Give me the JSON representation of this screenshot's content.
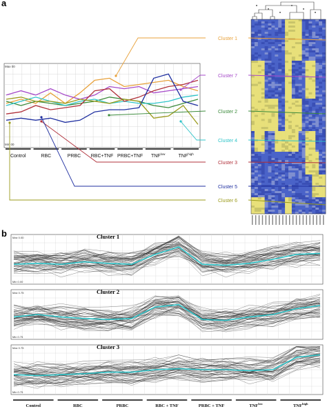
{
  "panel_a": {
    "letter": "a",
    "max_label": "Max 00",
    "min_label": "Min 00",
    "conditions": [
      "Control",
      "RBC",
      "PRBC",
      "RBC+TNF",
      "PRBC+TNF",
      "TNF",
      "TNF"
    ],
    "condition_superscripts": [
      "",
      "",
      "",
      "",
      "",
      "low",
      "high"
    ],
    "profiles": [
      {
        "name": "Cluster 1",
        "color": "#e8a13a",
        "values": [
          0.05,
          0.15,
          0.05,
          0.3,
          0.05,
          0.3,
          0.6,
          0.65,
          0.45,
          0.5,
          0.55,
          0.6,
          0.45,
          0.35
        ]
      },
      {
        "name": "Cluster 7",
        "color": "#a64ac9",
        "values": [
          0.25,
          0.35,
          0.25,
          0.4,
          0.25,
          0.15,
          0.25,
          0.45,
          0.4,
          0.45,
          0.3,
          0.35,
          0.4,
          0.45
        ]
      },
      {
        "name": "Cluster 2",
        "color": "#3a8a3a",
        "values": [
          0.1,
          0.0,
          0.1,
          0.05,
          0.0,
          0.05,
          0.1,
          0.2,
          0.15,
          0.1,
          0.0,
          -0.05,
          0.05,
          0.15
        ]
      },
      {
        "name": "Cluster 4",
        "color": "#2ec4c9",
        "values": [
          0.0,
          0.1,
          0.2,
          0.1,
          0.0,
          0.1,
          0.15,
          0.05,
          0.1,
          0.05,
          0.05,
          0.1,
          0.2,
          0.25
        ]
      },
      {
        "name": "Cluster 3",
        "color": "#b0303a",
        "values": [
          -0.2,
          -0.15,
          0.0,
          -0.1,
          -0.05,
          0.0,
          0.35,
          0.4,
          0.1,
          0.2,
          0.35,
          0.45,
          0.5,
          0.6
        ]
      },
      {
        "name": "Cluster 5",
        "color": "#1f2fa0",
        "values": [
          -0.35,
          -0.3,
          -0.35,
          -0.3,
          -0.4,
          -0.35,
          -0.15,
          -0.1,
          -0.1,
          -0.05,
          0.65,
          0.75,
          0.1,
          0.0
        ]
      },
      {
        "name": "Cluster 6",
        "color": "#9a9a1a",
        "values": [
          0.15,
          0.2,
          0.1,
          0.1,
          0.05,
          0.15,
          0.1,
          0.05,
          0.15,
          0.1,
          -0.3,
          -0.25,
          0.0,
          -0.45
        ]
      }
    ],
    "cluster_labels": [
      {
        "text": "Cluster 1",
        "color": "#e8a13a"
      },
      {
        "text": "Cluster 7",
        "color": "#a64ac9"
      },
      {
        "text": "Cluster 2",
        "color": "#3a8a3a"
      },
      {
        "text": "Cluster 4",
        "color": "#2ec4c9"
      },
      {
        "text": "Cluster 3",
        "color": "#b0303a"
      },
      {
        "text": "Cluster 5",
        "color": "#1f2fa0"
      },
      {
        "text": "Cluster 6",
        "color": "#9a9a1a"
      }
    ]
  },
  "panel_b": {
    "letter": "b",
    "conditions": [
      "Control",
      "RBC",
      "PRBC",
      "RBC + TNF",
      "PRBC + TNF",
      "TNF",
      "TNF"
    ],
    "condition_superscripts": [
      "",
      "",
      "",
      "",
      "",
      "low",
      "high"
    ],
    "clusters": [
      {
        "title": "Cluster 1",
        "max_label": "Max 0.00",
        "min_label": "Min 0.00",
        "mean": [
          0.4,
          0.42,
          0.4,
          0.45,
          0.42,
          0.4,
          0.6,
          0.75,
          0.4,
          0.38,
          0.42,
          0.5,
          0.6,
          0.62
        ]
      },
      {
        "title": "Cluster 2",
        "max_label": "Max 0.75",
        "min_label": "Min 0.75",
        "mean": [
          0.45,
          0.5,
          0.45,
          0.42,
          0.4,
          0.42,
          0.65,
          0.7,
          0.4,
          0.38,
          0.45,
          0.5,
          0.62,
          0.68
        ]
      },
      {
        "title": "Cluster 3",
        "max_label": "Max 0.75",
        "min_label": "Min 0.75",
        "mean": [
          0.4,
          0.38,
          0.4,
          0.42,
          0.45,
          0.45,
          0.5,
          0.52,
          0.5,
          0.5,
          0.48,
          0.5,
          0.75,
          0.8
        ]
      }
    ],
    "mean_color": "#2ec4c9"
  }
}
